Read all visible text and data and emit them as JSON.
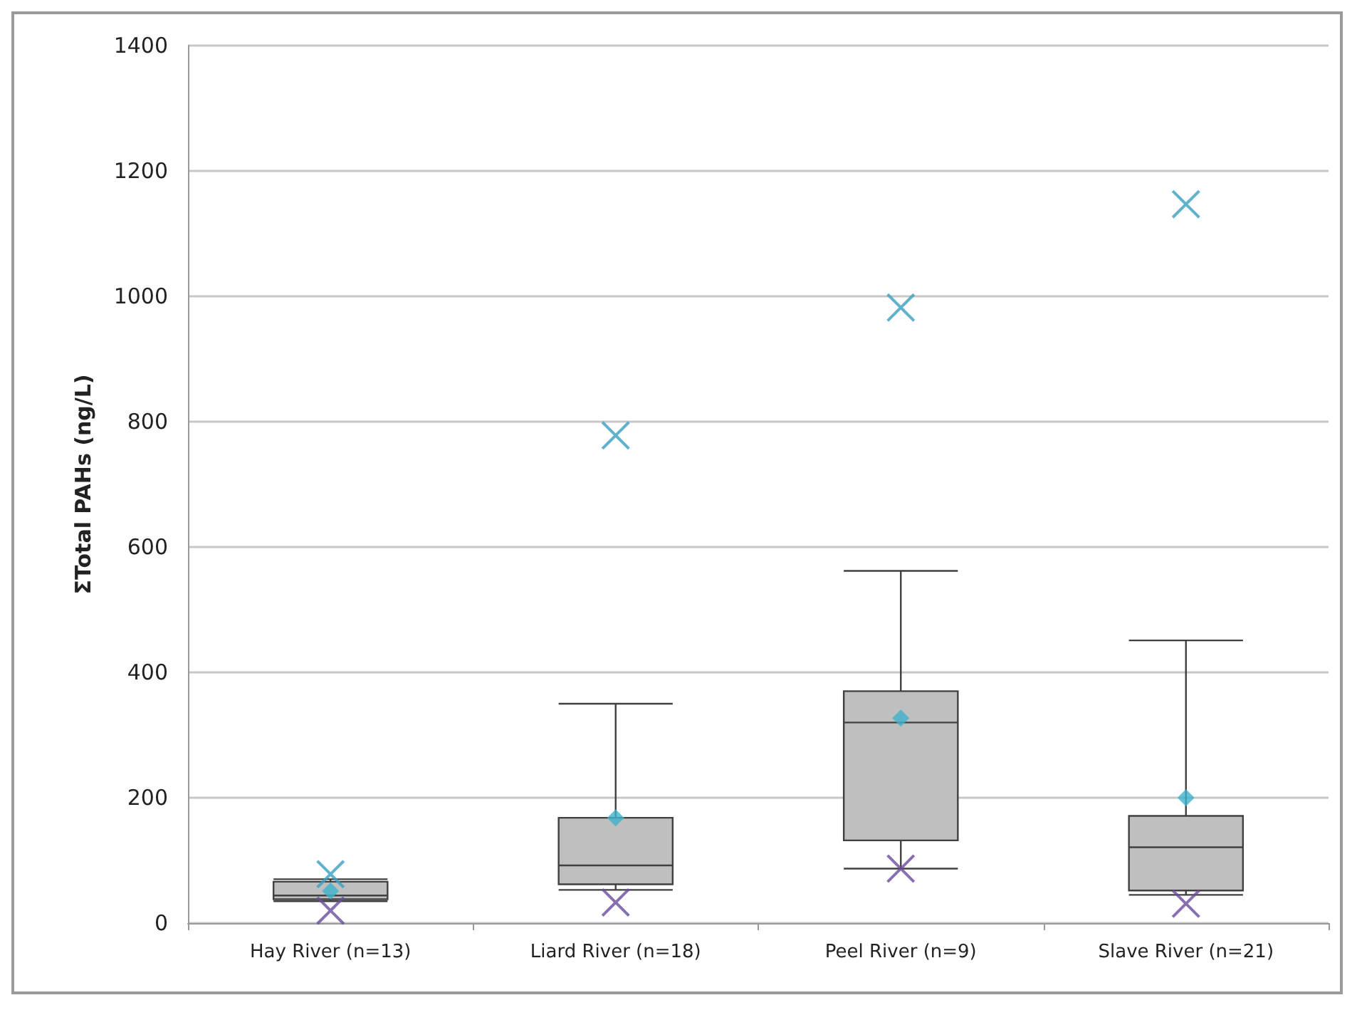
{
  "chart_data": {
    "type": "box",
    "ylabel": "ΣTotal PAHs (ng/L)",
    "categories": [
      "Hay River (n=13)",
      "Liard River (n=18)",
      "Peel River (n=9)",
      "Slave River (n=21)"
    ],
    "boxes": [
      {
        "low": 35,
        "q1": 38,
        "median": 44,
        "q3": 66,
        "high": 70
      },
      {
        "low": 53,
        "q1": 62,
        "median": 92,
        "q3": 168,
        "high": 350
      },
      {
        "low": 87,
        "q1": 132,
        "median": 320,
        "q3": 370,
        "high": 562
      },
      {
        "low": 45,
        "q1": 52,
        "median": 121,
        "q3": 171,
        "high": 451
      }
    ],
    "color": "#bfbfbf",
    "series": [
      {
        "type": "scatter",
        "marker": "diamond",
        "color": "#3fb3cc",
        "values": [
          51,
          168,
          327,
          200
        ]
      },
      {
        "type": "scatter",
        "marker": "cross",
        "color": "#3a9fbf",
        "values": [
          78,
          778,
          982,
          1147
        ]
      },
      {
        "type": "scatter",
        "marker": "cross",
        "color": "#6a4c9c",
        "values": [
          20,
          33,
          87,
          31
        ]
      }
    ],
    "ylim": [
      0,
      1400
    ],
    "yticks": [
      0,
      200,
      400,
      600,
      800,
      1000,
      1200,
      1400
    ],
    "grid": "y"
  }
}
